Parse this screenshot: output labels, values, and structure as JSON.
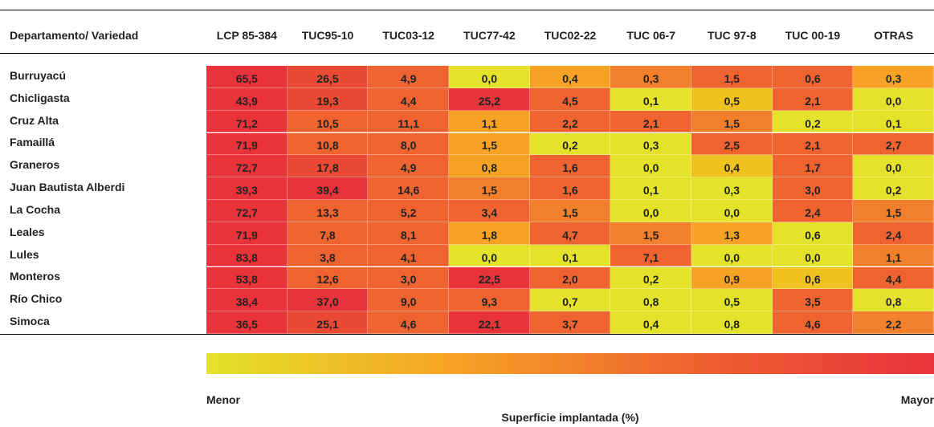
{
  "table": {
    "header": [
      "Departamento/ Variedad",
      "LCP 85-384",
      "TUC95-10",
      "TUC03-12",
      "TUC77-42",
      "TUC02-22",
      "TUC 06-7",
      "TUC 97-8",
      "TUC 00-19",
      "OTRAS"
    ],
    "rows": [
      [
        "Burruyacú",
        "65,5",
        "26,5",
        "4,9",
        "0,0",
        "0,4",
        "0,3",
        "1,5",
        "0,6",
        "0,3"
      ],
      [
        "Chicligasta",
        "43,9",
        "19,3",
        "4,4",
        "25,2",
        "4,5",
        "0,1",
        "0,5",
        "2,1",
        "0,0"
      ],
      [
        "Cruz Alta",
        "71,2",
        "10,5",
        "11,1",
        "1,1",
        "2,2",
        "2,1",
        "1,5",
        "0,2",
        "0,1"
      ],
      [
        "Famaillá",
        "71,9",
        "10,8",
        "8,0",
        "1,5",
        "0,2",
        "0,3",
        "2,5",
        "2,1",
        "2,7"
      ],
      [
        "Graneros",
        "72,7",
        "17,8",
        "4,9",
        "0,8",
        "1,6",
        "0,0",
        "0,4",
        "1,7",
        "0,0"
      ],
      [
        "Juan Bautista Alberdi",
        "39,3",
        "39,4",
        "14,6",
        "1,5",
        "1,6",
        "0,1",
        "0,3",
        "3,0",
        "0,2"
      ],
      [
        "La Cocha",
        "72,7",
        "13,3",
        "5,2",
        "3,4",
        "1,5",
        "0,0",
        "0,0",
        "2,4",
        "1,5"
      ],
      [
        "Leales",
        "71,9",
        "7,8",
        "8,1",
        "1,8",
        "4,7",
        "1,5",
        "1,3",
        "0,6",
        "2,4"
      ],
      [
        "Lules",
        "83,8",
        "3,8",
        "4,1",
        "0,0",
        "0,1",
        "7,1",
        "0,0",
        "0,0",
        "1,1"
      ],
      [
        "Monteros",
        "53,8",
        "12,6",
        "3,0",
        "22,5",
        "2,0",
        "0,2",
        "0,9",
        "0,6",
        "4,4"
      ],
      [
        "Río Chico",
        "38,4",
        "37,0",
        "9,0",
        "9,3",
        "0,7",
        "0,8",
        "0,5",
        "3,5",
        "0,8"
      ],
      [
        "Simoca",
        "36,5",
        "25,1",
        "4,6",
        "22,1",
        "3,7",
        "0,4",
        "0,8",
        "4,6",
        "2,2"
      ]
    ],
    "cell_colors": [
      [
        "#e8333b",
        "#ea4a33",
        "#ee6330",
        "#e4e22a",
        "#f6a325",
        "#f17f2b",
        "#ee6330",
        "#ee6330",
        "#f6a325"
      ],
      [
        "#e8333b",
        "#ea4a33",
        "#ee6330",
        "#e8333b",
        "#ee6330",
        "#e4e22a",
        "#f0c21f",
        "#ee6330",
        "#e4e22a"
      ],
      [
        "#e8333b",
        "#ee6330",
        "#ee6330",
        "#f6a325",
        "#ee6330",
        "#ee6330",
        "#f17f2b",
        "#e4e22a",
        "#e4e22a"
      ],
      [
        "#e8333b",
        "#ee6330",
        "#ee6330",
        "#f6a325",
        "#e4e22a",
        "#e4e22a",
        "#ee6330",
        "#ee6330",
        "#ee6330"
      ],
      [
        "#e8333b",
        "#ea4a33",
        "#ee6330",
        "#f6a325",
        "#ee6330",
        "#e4e22a",
        "#f0c21f",
        "#ee6330",
        "#e4e22a"
      ],
      [
        "#e8333b",
        "#e8333b",
        "#ee6330",
        "#f17f2b",
        "#ee6330",
        "#e4e22a",
        "#e4e22a",
        "#ee6330",
        "#e4e22a"
      ],
      [
        "#e8333b",
        "#ee6330",
        "#ee6330",
        "#ee6330",
        "#f17f2b",
        "#e4e22a",
        "#e4e22a",
        "#ee6330",
        "#f17f2b"
      ],
      [
        "#e8333b",
        "#ee6330",
        "#ee6330",
        "#f6a325",
        "#ee6330",
        "#f17f2b",
        "#f6a325",
        "#e4e22a",
        "#ee6330"
      ],
      [
        "#e8333b",
        "#ee6330",
        "#ee6330",
        "#e4e22a",
        "#e4e22a",
        "#ee6330",
        "#e4e22a",
        "#e4e22a",
        "#f17f2b"
      ],
      [
        "#e8333b",
        "#ee6330",
        "#ee6330",
        "#e8333b",
        "#ee6330",
        "#e4e22a",
        "#f6a325",
        "#f0c21f",
        "#ee6330"
      ],
      [
        "#e8333b",
        "#e8333b",
        "#ee6330",
        "#ee6330",
        "#e4e22a",
        "#e4e22a",
        "#e4e22a",
        "#ee6330",
        "#e4e22a"
      ],
      [
        "#e8333b",
        "#ea4a33",
        "#ee6330",
        "#e8333b",
        "#ee6330",
        "#e4e22a",
        "#e4e22a",
        "#ee6330",
        "#f17f2b"
      ]
    ]
  },
  "legend": {
    "min_label": "Menor",
    "max_label": "Mayor",
    "title": "Superficie implantada (%)",
    "colors": [
      "#e4e22a",
      "#f6a325",
      "#ee6330",
      "#e8333b"
    ]
  }
}
